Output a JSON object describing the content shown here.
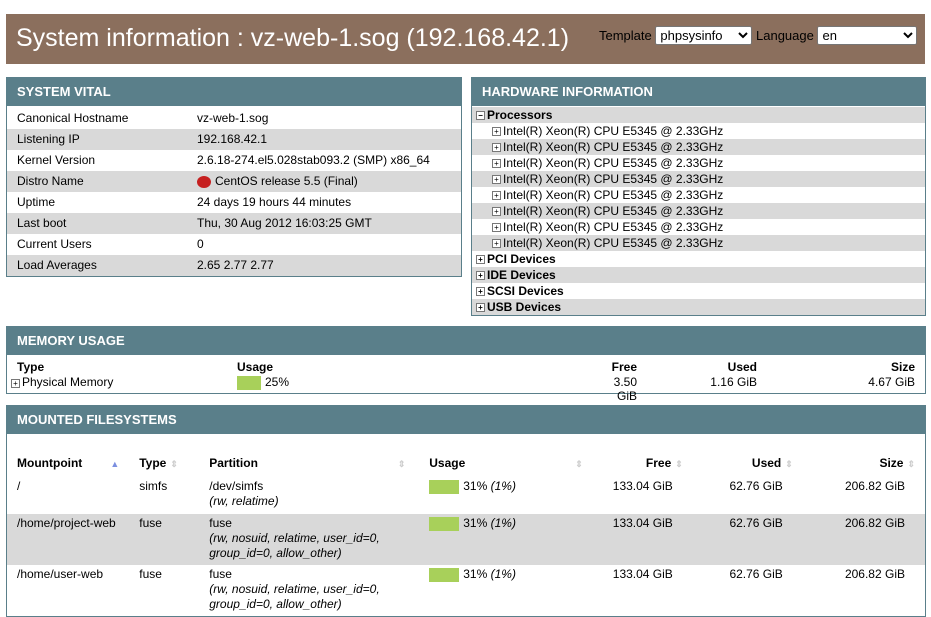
{
  "header": {
    "title": "System information : vz-web-1.sog (192.168.42.1)",
    "template_label": "Template",
    "template_value": "phpsysinfo",
    "language_label": "Language",
    "language_value": "en"
  },
  "vital": {
    "title": "SYSTEM VITAL",
    "rows": [
      {
        "label": "Canonical Hostname",
        "value": "vz-web-1.sog"
      },
      {
        "label": "Listening IP",
        "value": "192.168.42.1"
      },
      {
        "label": "Kernel Version",
        "value": "2.6.18-274.el5.028stab093.2 (SMP) x86_64"
      },
      {
        "label": "Distro Name",
        "value": "CentOS release 5.5 (Final)",
        "icon": "centos-icon"
      },
      {
        "label": "Uptime",
        "value": "24 days 19 hours 44 minutes"
      },
      {
        "label": "Last boot",
        "value": "Thu, 30 Aug 2012 16:03:25 GMT"
      },
      {
        "label": "Current Users",
        "value": "0"
      },
      {
        "label": "Load Averages",
        "value": "2.65 2.77 2.77"
      }
    ]
  },
  "hardware": {
    "title": "HARDWARE INFORMATION",
    "processors_label": "Processors",
    "cpus": [
      "Intel(R) Xeon(R) CPU E5345 @ 2.33GHz",
      "Intel(R) Xeon(R) CPU E5345 @ 2.33GHz",
      "Intel(R) Xeon(R) CPU E5345 @ 2.33GHz",
      "Intel(R) Xeon(R) CPU E5345 @ 2.33GHz",
      "Intel(R) Xeon(R) CPU E5345 @ 2.33GHz",
      "Intel(R) Xeon(R) CPU E5345 @ 2.33GHz",
      "Intel(R) Xeon(R) CPU E5345 @ 2.33GHz",
      "Intel(R) Xeon(R) CPU E5345 @ 2.33GHz"
    ],
    "groups": [
      "PCI Devices",
      "IDE Devices",
      "SCSI Devices",
      "USB Devices"
    ]
  },
  "memory": {
    "title": "MEMORY USAGE",
    "headers": [
      "Type",
      "Usage",
      "Free",
      "Used",
      "Size"
    ],
    "row": {
      "type": "Physical Memory",
      "usage": "25%",
      "usage_pct": 25,
      "free": "3.50 GiB",
      "used": "1.16 GiB",
      "size": "4.67 GiB"
    }
  },
  "fs": {
    "title": "MOUNTED FILESYSTEMS",
    "headers": [
      "Mountpoint",
      "Type",
      "Partition",
      "Usage",
      "Free",
      "Used",
      "Size"
    ],
    "rows": [
      {
        "mount": "/",
        "type": "simfs",
        "partition": "/dev/simfs",
        "options": "(rw, relatime)",
        "usage": "31%",
        "usage_alt": "(1%)",
        "usage_pct": 31,
        "free": "133.04 GiB",
        "used": "62.76 GiB",
        "size": "206.82 GiB"
      },
      {
        "mount": "/home/project-web",
        "type": "fuse",
        "partition": "fuse",
        "options": "(rw, nosuid, relatime, user_id=0, group_id=0, allow_other)",
        "usage": "31%",
        "usage_alt": "(1%)",
        "usage_pct": 31,
        "free": "133.04 GiB",
        "used": "62.76 GiB",
        "size": "206.82 GiB"
      },
      {
        "mount": "/home/user-web",
        "type": "fuse",
        "partition": "fuse",
        "options": "(rw, nosuid, relatime, user_id=0, group_id=0, allow_other)",
        "usage": "31%",
        "usage_alt": "(1%)",
        "usage_pct": 31,
        "free": "133.04 GiB",
        "used": "62.76 GiB",
        "size": "206.82 GiB"
      }
    ]
  },
  "colors": {
    "header": "#8b6f5d",
    "panel": "#5a7f8a",
    "bar": "#a8d05a"
  }
}
